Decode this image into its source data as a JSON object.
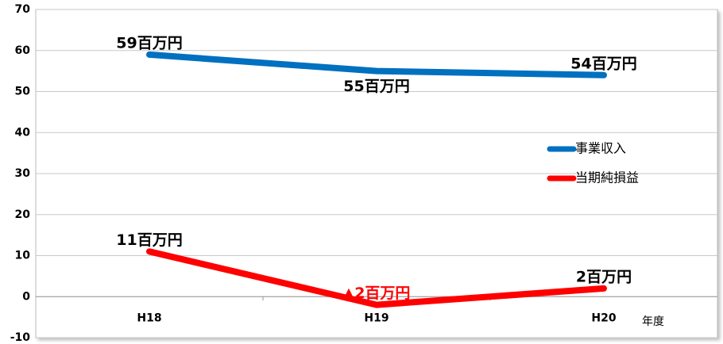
{
  "chart_data": {
    "type": "line",
    "categories": [
      "H18",
      "H19",
      "H20"
    ],
    "x_label": "年度",
    "series": [
      {
        "name": "事業収入",
        "color": "#0070c0",
        "values": [
          59,
          55,
          54
        ],
        "value_labels": [
          "59百万円",
          "55百万円",
          "54百万円"
        ]
      },
      {
        "name": "当期純損益",
        "color": "#ff0000",
        "values": [
          11,
          -2,
          2
        ],
        "value_labels": [
          "11百万円",
          "▲2百万円",
          "2百万円"
        ]
      }
    ],
    "ylim": [
      -10,
      70
    ],
    "yticks": [
      -10,
      0,
      10,
      20,
      30,
      40,
      50,
      60,
      70
    ],
    "grid": true,
    "legend": "right"
  }
}
